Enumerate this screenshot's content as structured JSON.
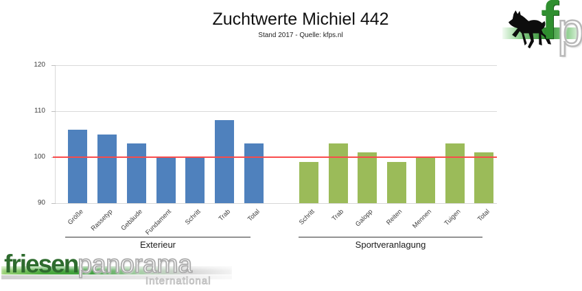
{
  "title": "Zuchtwerte Michiel 442",
  "subtitle": "Stand 2017 - Quelle: kfps.nl",
  "chart_data": {
    "type": "bar",
    "title": "Zuchtwerte Michiel 442",
    "subtitle": "Stand 2017 - Quelle: kfps.nl",
    "ylim": [
      90,
      120
    ],
    "yticks": [
      90,
      100,
      110,
      120
    ],
    "grid": true,
    "legend_position": "none",
    "reference_line": {
      "value": 100,
      "color": "#f94a4a"
    },
    "groups": [
      {
        "label": "Exterieur",
        "color": "#4f81bd",
        "categories": [
          "Größe",
          "Rassetyp",
          "Gebäude",
          "Fundament",
          "Schritt",
          "Trab",
          "Total"
        ],
        "values": [
          106,
          105,
          103,
          100,
          100,
          108,
          103
        ]
      },
      {
        "label": "Sportveranlagung",
        "color": "#9bbb59",
        "categories": [
          "Schritt",
          "Trab",
          "Galopp",
          "Reiten",
          "Mennen",
          "Tuigen",
          "Total"
        ],
        "values": [
          99,
          103,
          101,
          99,
          100,
          103,
          101
        ]
      }
    ]
  },
  "branding": {
    "corner_logo": {
      "letter_f": "f",
      "letter_p": "p"
    },
    "footer_logo": {
      "word_green": "friesen",
      "word_gray": "panorama",
      "subtitle": "International"
    }
  },
  "colors": {
    "bar_blue": "#4f81bd",
    "bar_green": "#9bbb59",
    "reference_red": "#f94a4a",
    "gridline": "#d9d9d9",
    "logo_green": "#2e6b2e"
  }
}
